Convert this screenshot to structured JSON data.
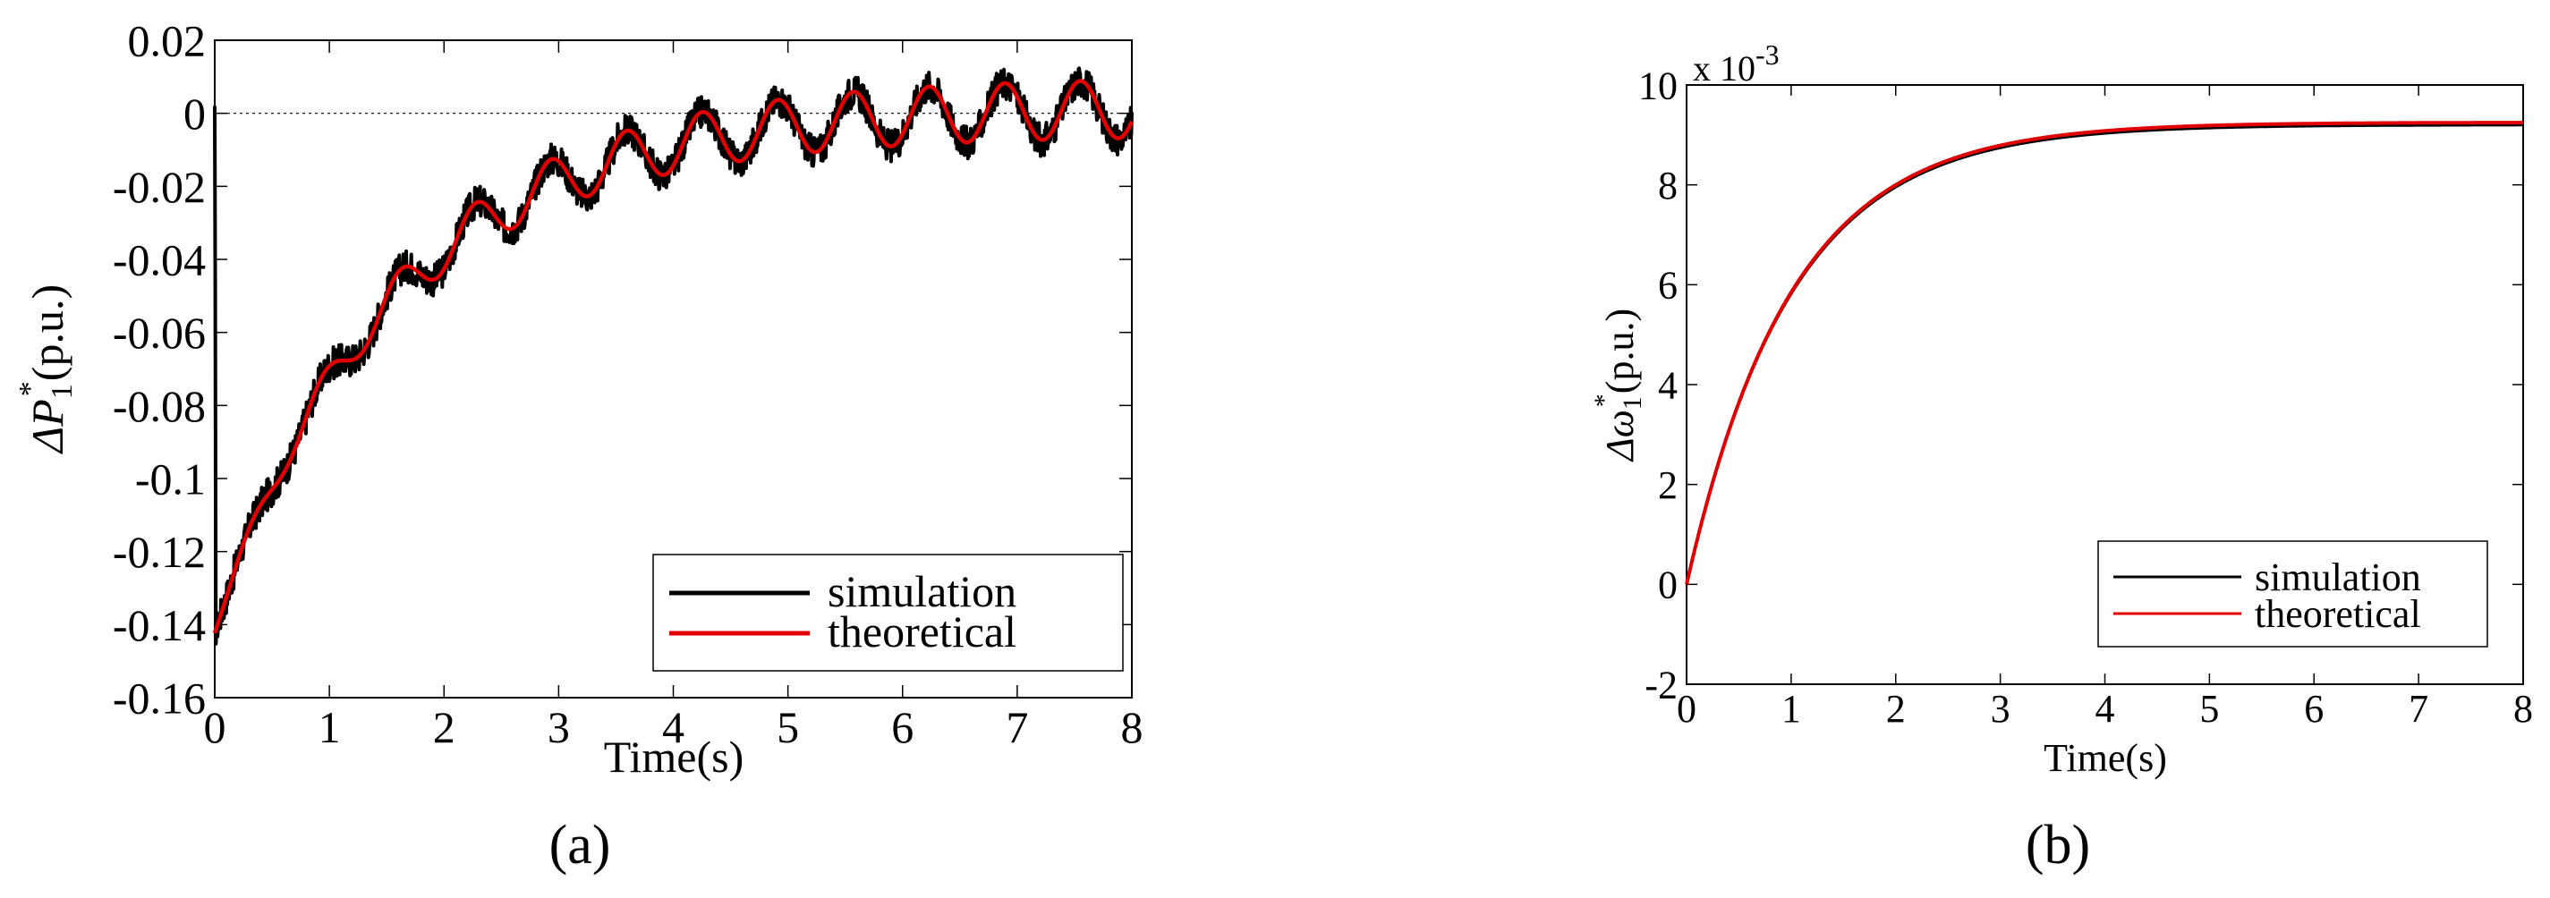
{
  "chart_data": [
    {
      "type": "line",
      "panel_label": "(a)",
      "title": "",
      "xlabel": "Time(s)",
      "ylabel_main": "ΔP",
      "ylabel_sub": "1",
      "ylabel_sup": "*",
      "ylabel_unit": "(p.u.)",
      "xlim": [
        0,
        8
      ],
      "ylim": [
        -0.16,
        0.02
      ],
      "xticks": [
        0,
        1,
        2,
        3,
        4,
        5,
        6,
        7,
        8
      ],
      "xtick_labels": [
        "0",
        "1",
        "2",
        "3",
        "4",
        "5",
        "6",
        "7",
        "8"
      ],
      "yticks": [
        -0.16,
        -0.14,
        -0.12,
        -0.1,
        -0.08,
        -0.06,
        -0.04,
        -0.02,
        0,
        0.02
      ],
      "ytick_labels": [
        "-0.16",
        "-0.14",
        "-0.12",
        "-0.1",
        "-0.08",
        "-0.06",
        "-0.04",
        "-0.02",
        "0",
        "0.02"
      ],
      "reference_line_y": 0,
      "legend": [
        "simulation",
        "theoretical"
      ],
      "legend_position": "bottom-right",
      "series": [
        {
          "name": "simulation",
          "color": "#000000",
          "model": "damped-oscillation-noisy",
          "y0": -0.138,
          "amp": 0.14,
          "tau": 1.55,
          "osc_amp": 0.008,
          "osc_period": 0.66,
          "noise": 0.0045
        },
        {
          "name": "theoretical",
          "color": "#e00000",
          "model": "damped-oscillation",
          "y0": -0.138,
          "amp": 0.14,
          "tau": 1.55,
          "osc_amp": 0.008,
          "osc_period": 0.66
        }
      ]
    },
    {
      "type": "line",
      "panel_label": "(b)",
      "title": "",
      "xlabel": "Time(s)",
      "ylabel_main": "Δω",
      "ylabel_sub": "1",
      "ylabel_sup": "*",
      "ylabel_unit": "(p.u.)",
      "exponent_label": "x 10",
      "exponent_power": "-3",
      "xlim": [
        0,
        8
      ],
      "ylim": [
        -2,
        10
      ],
      "xticks": [
        0,
        1,
        2,
        3,
        4,
        5,
        6,
        7,
        8
      ],
      "xtick_labels": [
        "0",
        "1",
        "2",
        "3",
        "4",
        "5",
        "6",
        "7",
        "8"
      ],
      "yticks": [
        -2,
        0,
        2,
        4,
        6,
        8,
        10
      ],
      "ytick_labels": [
        "-2",
        "0",
        "2",
        "4",
        "6",
        "8",
        "10"
      ],
      "legend": [
        "simulation",
        "theoretical"
      ],
      "legend_position": "bottom-right",
      "series": [
        {
          "name": "simulation",
          "color": "#000000",
          "model": "first-order-rise",
          "final": 9.2,
          "tau": 1.0
        },
        {
          "name": "theoretical",
          "color": "#e00000",
          "model": "first-order-rise",
          "final": 9.25,
          "tau": 1.0
        }
      ]
    }
  ]
}
